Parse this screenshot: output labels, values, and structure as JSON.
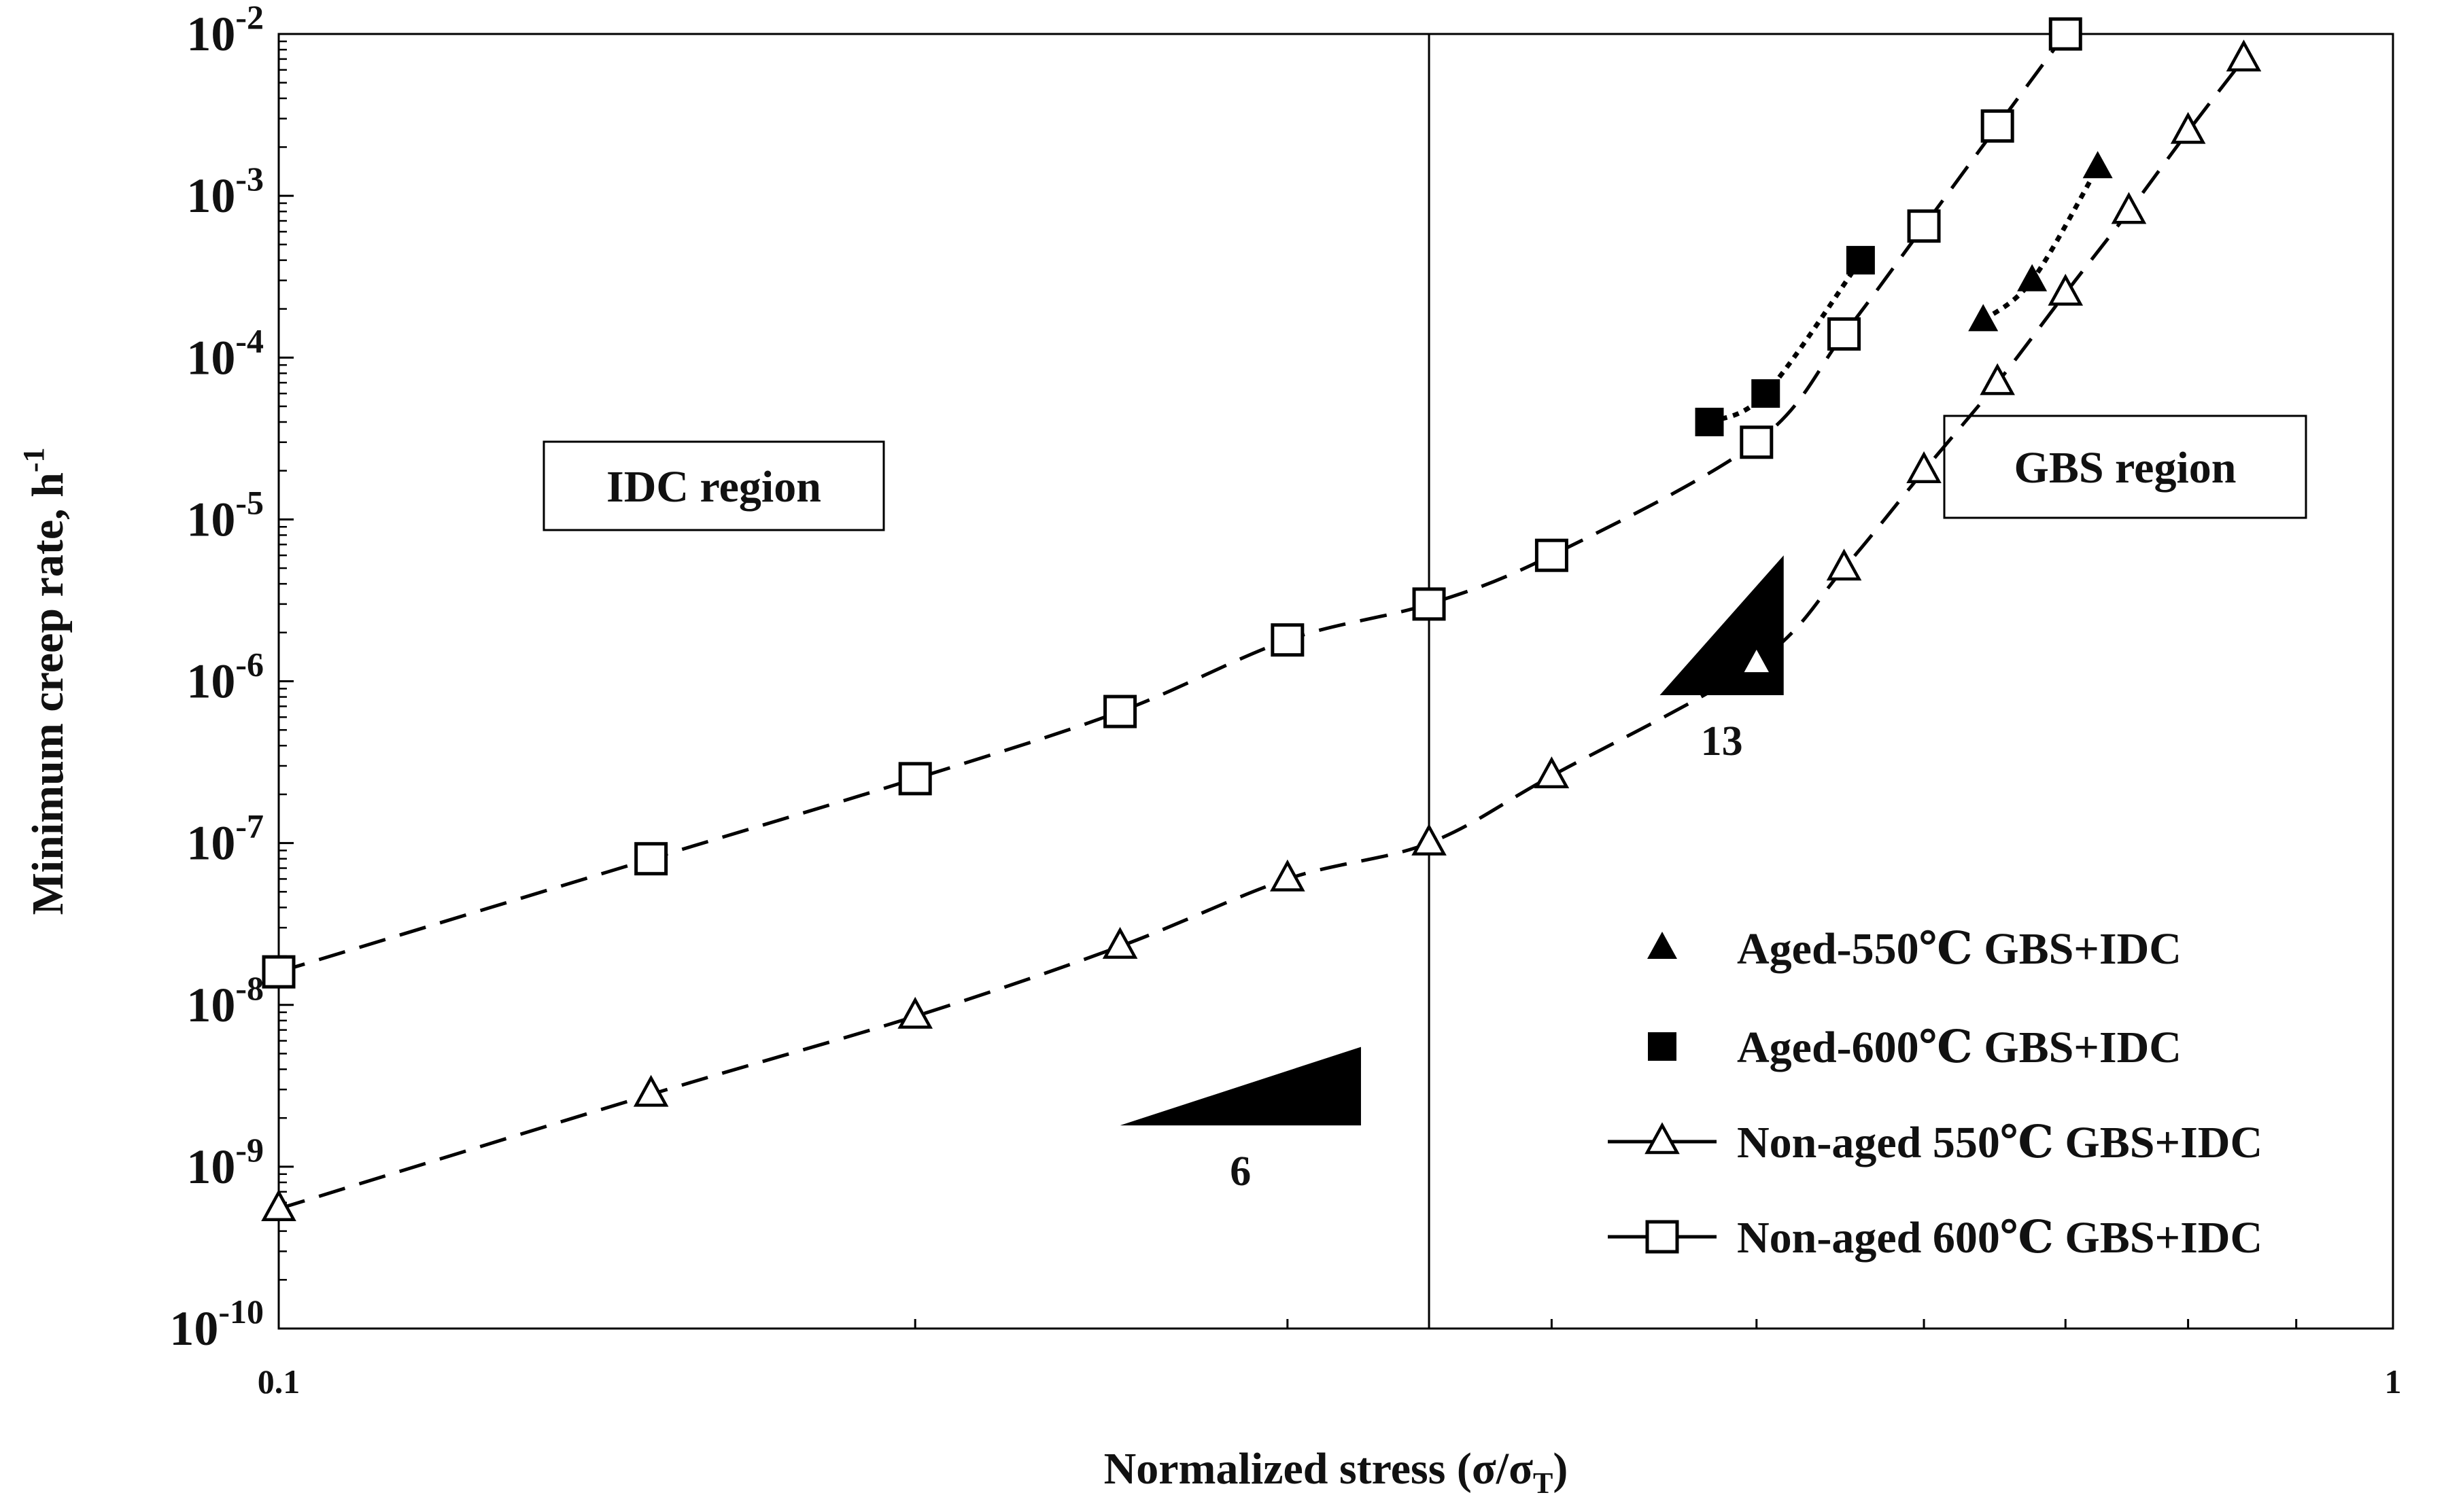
{
  "chart_data": {
    "type": "scatter",
    "xscale": "log",
    "yscale": "log",
    "xlim": [
      0.1,
      1
    ],
    "ylim": [
      1e-10,
      0.01
    ],
    "grid": false,
    "legend_position": "bottom-right",
    "xlabel": {
      "pre": "Normalized stress (σ/σ",
      "sub": "T",
      "post": ")"
    },
    "ylabel": {
      "pre": "Minimum creep rate,  h",
      "sup": "-1"
    },
    "x_ticks": [
      {
        "value": 0.1,
        "label": "0.1"
      },
      {
        "value": 1,
        "label": "1"
      }
    ],
    "y_ticks": [
      {
        "value": 1e-10,
        "base": "10",
        "exp": "-10"
      },
      {
        "value": 1e-09,
        "base": "10",
        "exp": "-9"
      },
      {
        "value": 1e-08,
        "base": "10",
        "exp": "-8"
      },
      {
        "value": 1e-07,
        "base": "10",
        "exp": "-7"
      },
      {
        "value": 1e-06,
        "base": "10",
        "exp": "-6"
      },
      {
        "value": 1e-05,
        "base": "10",
        "exp": "-5"
      },
      {
        "value": 0.0001,
        "base": "10",
        "exp": "-4"
      },
      {
        "value": 0.001,
        "base": "10",
        "exp": "-3"
      },
      {
        "value": 0.01,
        "base": "10",
        "exp": "-2"
      }
    ],
    "region_divider_x": 0.35,
    "regions": [
      {
        "label": "IDC region",
        "side": "left"
      },
      {
        "label": "GBS region",
        "side": "right"
      }
    ],
    "slope_markers": [
      {
        "label": "6",
        "x0": 0.25,
        "x1": 0.325,
        "y0": 1.8e-09,
        "y1": 5.5e-09
      },
      {
        "label": "13",
        "x0": 0.45,
        "x1": 0.515,
        "y0": 8.2e-07,
        "y1": 6e-06
      }
    ],
    "series": [
      {
        "name": "Aged-550℃ GBS+IDC",
        "marker": "filled-triangle",
        "line": "dotted",
        "points": [
          [
            0.64,
            0.00017
          ],
          [
            0.675,
            0.0003
          ],
          [
            0.725,
            0.0015
          ]
        ]
      },
      {
        "name": "Aged-600℃ GBS+IDC",
        "marker": "filled-square",
        "line": "dotted",
        "points": [
          [
            0.475,
            4e-05
          ],
          [
            0.505,
            6e-05
          ],
          [
            0.56,
            0.0004
          ]
        ]
      },
      {
        "name": "Non-aged 550℃ GBS+IDC",
        "marker": "open-triangle",
        "line": "dashed",
        "points": [
          [
            0.1,
            5.5e-10
          ],
          [
            0.15,
            2.8e-09
          ],
          [
            0.2,
            8.5e-09
          ],
          [
            0.25,
            2.3e-08
          ],
          [
            0.3,
            6e-08
          ],
          [
            0.35,
            1e-07
          ],
          [
            0.4,
            2.6e-07
          ],
          [
            0.5,
            1.3e-06
          ],
          [
            0.55,
            5e-06
          ],
          [
            0.6,
            2e-05
          ],
          [
            0.65,
            7e-05
          ],
          [
            0.7,
            0.00025
          ],
          [
            0.75,
            0.0008
          ],
          [
            0.8,
            0.0025
          ],
          [
            0.85,
            0.007
          ]
        ]
      },
      {
        "name": "Non-aged 600℃ GBS+IDC",
        "marker": "open-square",
        "line": "dashed",
        "points": [
          [
            0.1,
            1.6e-08
          ],
          [
            0.15,
            8e-08
          ],
          [
            0.2,
            2.5e-07
          ],
          [
            0.25,
            6.5e-07
          ],
          [
            0.3,
            1.8e-06
          ],
          [
            0.35,
            3e-06
          ],
          [
            0.4,
            6e-06
          ],
          [
            0.5,
            3e-05
          ],
          [
            0.55,
            0.00014
          ],
          [
            0.6,
            0.00065
          ],
          [
            0.65,
            0.0027
          ],
          [
            0.7,
            0.01
          ]
        ]
      }
    ]
  }
}
